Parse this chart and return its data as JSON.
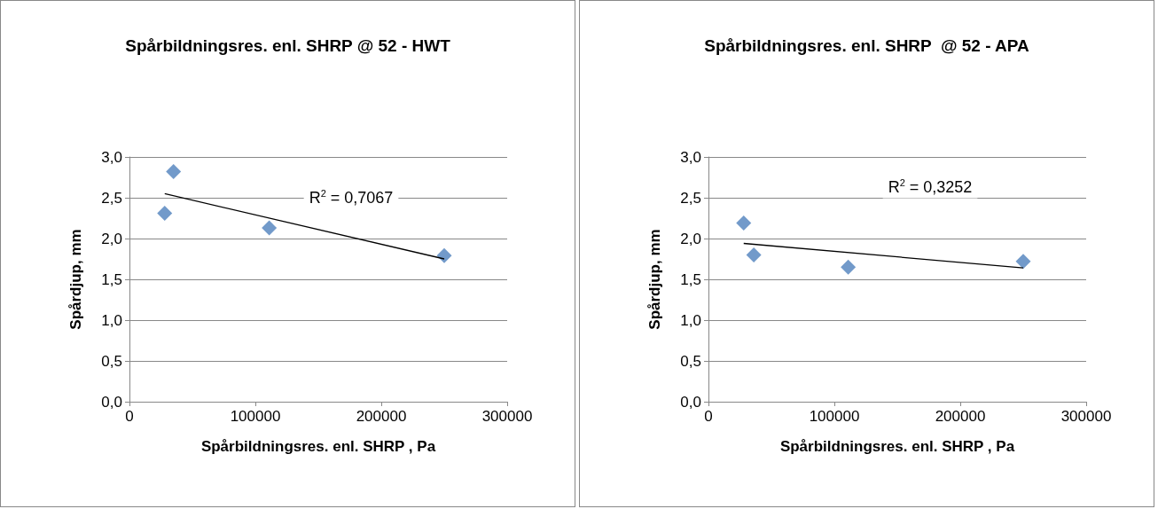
{
  "chart_data": [
    {
      "type": "scatter",
      "title": "Spårbildningsres. enl. SHRP @ 52 - HWT",
      "xlabel": "Spårbildningsres. enl. SHRP , Pa",
      "ylabel": "Spårdjup, mm",
      "marker": "diamond",
      "grid": "y",
      "series": [
        {
          "color": "#4f81bd",
          "x": [
            28000,
            35000,
            111000,
            250000
          ],
          "values": [
            2.31,
            2.82,
            2.13,
            1.79
          ]
        },
        {
          "type": "line",
          "color": "#000000",
          "marker": "none",
          "x": [
            28000,
            250000
          ],
          "values": [
            2.55,
            1.75
          ]
        }
      ],
      "annotations": [
        "R$^{2}$ = 0,7067"
      ],
      "xlim": [
        0,
        300000
      ],
      "xticks": [
        0,
        100000,
        200000,
        300000
      ],
      "ylim": [
        0,
        3
      ],
      "yticks": [
        {
          "value": 0,
          "label": "0,0"
        },
        {
          "value": 0.5,
          "label": "0,5"
        },
        {
          "value": 1,
          "label": "1,0"
        },
        {
          "value": 1.5,
          "label": "1,5"
        },
        {
          "value": 2,
          "label": "2,0"
        },
        {
          "value": 2.5,
          "label": "2,5"
        },
        {
          "value": 3,
          "label": "3,0"
        }
      ]
    },
    {
      "type": "scatter",
      "title": "Spårbildningsres. enl. SHRP  @ 52 - APA",
      "xlabel": "Spårbildningsres. enl. SHRP , Pa",
      "ylabel": "Spårdjup, mm",
      "marker": "diamond",
      "grid": "y",
      "series": [
        {
          "color": "#4f81bd",
          "x": [
            28000,
            36000,
            111000,
            250000
          ],
          "values": [
            2.19,
            1.8,
            1.65,
            1.72
          ]
        },
        {
          "type": "line",
          "color": "#000000",
          "marker": "none",
          "x": [
            28000,
            250000
          ],
          "values": [
            1.94,
            1.64
          ]
        }
      ],
      "annotations": [
        "R$^{2}$ = 0,3252"
      ],
      "xlim": [
        0,
        300000
      ],
      "xticks": [
        0,
        100000,
        200000,
        300000
      ],
      "ylim": [
        0,
        3
      ],
      "yticks": [
        {
          "value": 0,
          "label": "0,0"
        },
        {
          "value": 0.5,
          "label": "0,5"
        },
        {
          "value": 1,
          "label": "1,0"
        },
        {
          "value": 1.5,
          "label": "1,5"
        },
        {
          "value": 2,
          "label": "2,0"
        },
        {
          "value": 2.5,
          "label": "2,5"
        },
        {
          "value": 3,
          "label": "3,0"
        }
      ]
    }
  ]
}
